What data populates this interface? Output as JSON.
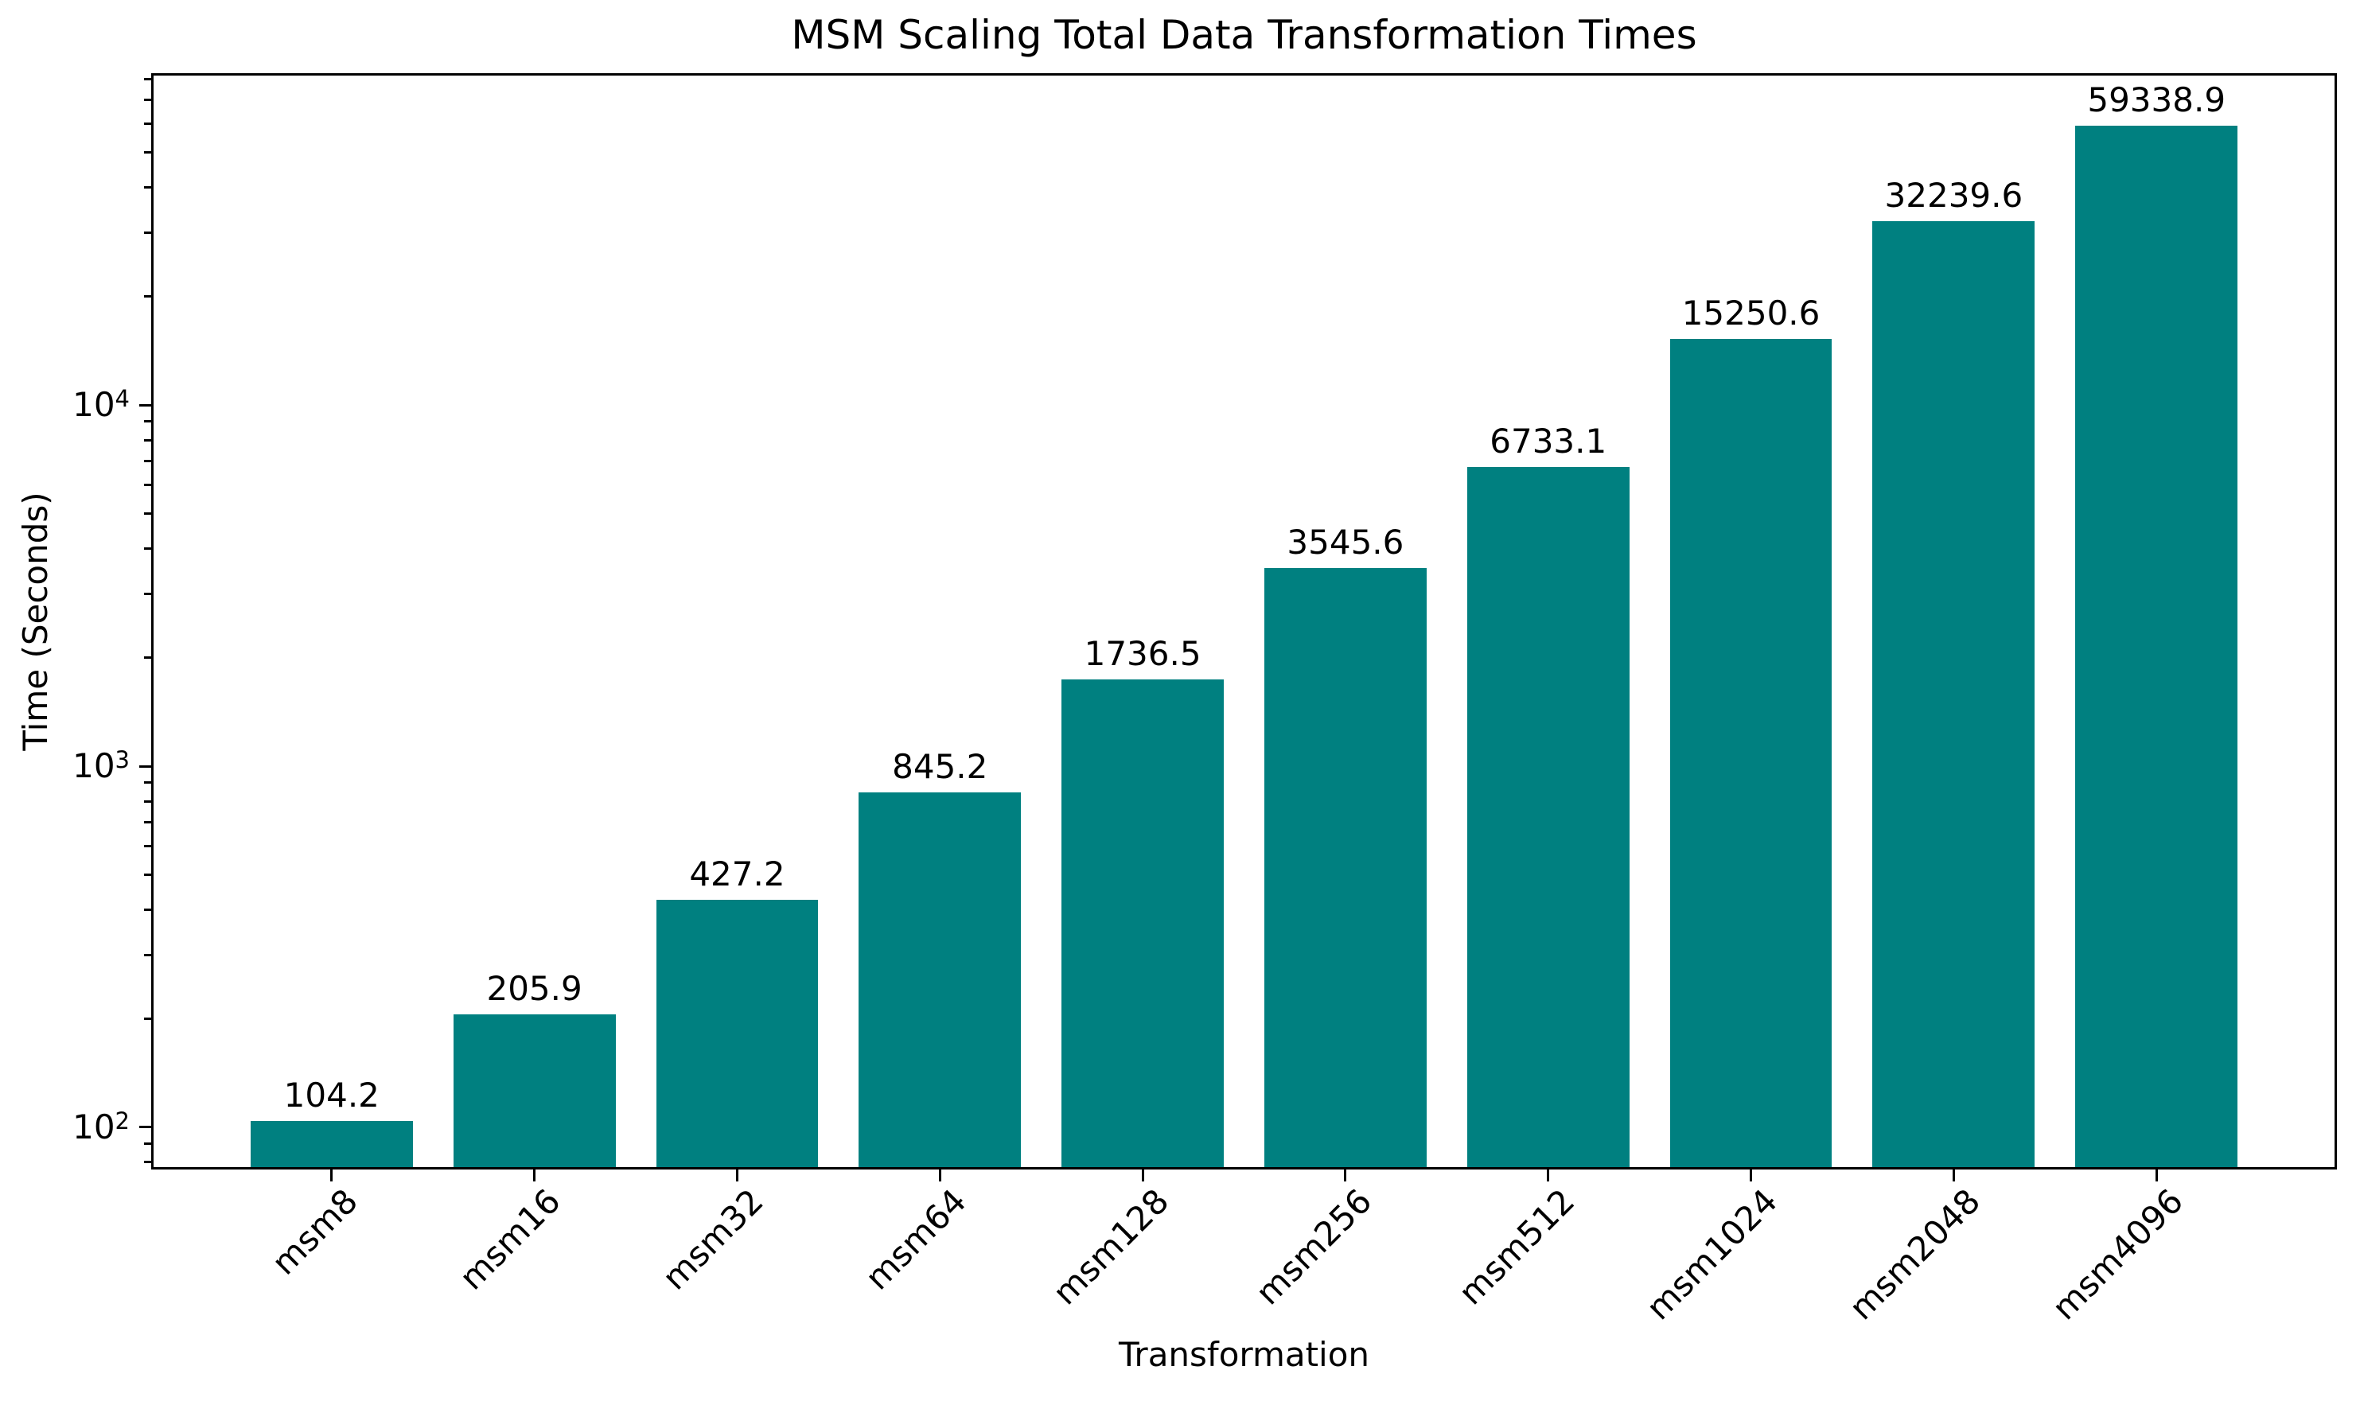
{
  "chart_data": {
    "type": "bar",
    "title": "MSM Scaling Total Data Transformation Times",
    "xlabel": "Transformation",
    "ylabel": "Time (Seconds)",
    "categories": [
      "msm8",
      "msm16",
      "msm32",
      "msm64",
      "msm128",
      "msm256",
      "msm512",
      "msm1024",
      "msm2048",
      "msm4096"
    ],
    "values": [
      104.2,
      205.9,
      427.2,
      845.2,
      1736.5,
      3545.6,
      6733.1,
      15250.6,
      32239.6,
      59338.9
    ],
    "value_labels": [
      "104.2",
      "205.9",
      "427.2",
      "845.2",
      "1736.5",
      "3545.6",
      "6733.1",
      "15250.6",
      "32239.6",
      "59338.9"
    ],
    "yscale": "log",
    "ylim": [
      76.4,
      83000
    ],
    "xlim": [
      -0.89,
      9.89
    ],
    "bar_width_fraction": 0.8,
    "grid": false,
    "legend": null,
    "x_tick_rotation_deg": 45,
    "y_major_ticks": [
      {
        "value": 100,
        "base": "10",
        "exp": "2"
      },
      {
        "value": 1000,
        "base": "10",
        "exp": "3"
      },
      {
        "value": 10000,
        "base": "10",
        "exp": "4"
      }
    ],
    "y_minor_ticks": [
      80,
      90,
      200,
      300,
      400,
      500,
      600,
      700,
      800,
      900,
      2000,
      3000,
      4000,
      5000,
      6000,
      7000,
      8000,
      9000,
      20000,
      30000,
      40000,
      50000,
      60000,
      70000,
      80000
    ]
  },
  "colors": {
    "bar": "#008080",
    "text": "#000000",
    "axis": "#000000",
    "background": "#ffffff"
  }
}
